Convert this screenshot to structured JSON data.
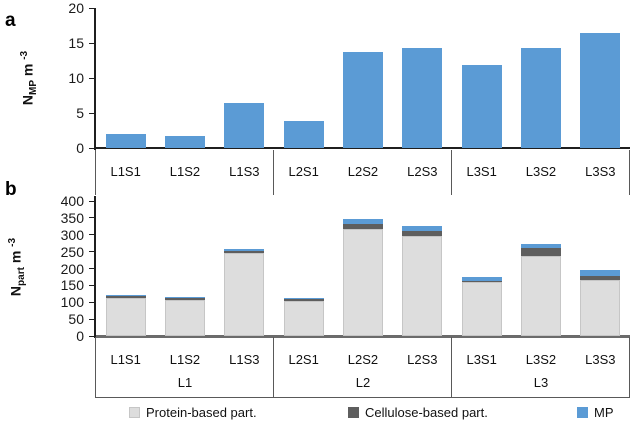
{
  "figure": {
    "panels": [
      {
        "id": "a",
        "letter": "a"
      },
      {
        "id": "b",
        "letter": "b"
      }
    ]
  },
  "colors": {
    "mp_blue": "#5B9BD5",
    "protein_gray": "#DDDDDD",
    "protein_border": "#C6C6C6",
    "cellulose_gray": "#5E5E5E",
    "axis": "#1F1F1F",
    "baseline_gray": "#6B6B6B",
    "divider": "#595959"
  },
  "legend": {
    "items": [
      {
        "label": "Protein-based part.",
        "color": "#DDDDDD",
        "border": "#C6C6C6"
      },
      {
        "label": "Cellulose-based part.",
        "color": "#5E5E5E",
        "border": "#5E5E5E"
      },
      {
        "label": "MP",
        "color": "#5B9BD5",
        "border": "#5B9BD5"
      }
    ]
  },
  "chart_data": [
    {
      "type": "bar",
      "panel": "a",
      "title": "",
      "xlabel": "",
      "ylabel": "N_MP m^-3",
      "ylabel_parts": {
        "base": "N",
        "sub": "MP",
        "rest": " m",
        "sup": "-3"
      },
      "ylim": [
        0,
        20
      ],
      "ytick_step": 5,
      "ytick_labels": [
        "0",
        "5",
        "10",
        "15",
        "20"
      ],
      "grid": false,
      "legend_position": "none",
      "categories": [
        "L1S1",
        "L1S2",
        "L1S3",
        "L2S1",
        "L2S2",
        "L2S3",
        "L3S1",
        "L3S2",
        "L3S3"
      ],
      "values": [
        2.0,
        1.7,
        6.4,
        3.8,
        13.7,
        14.3,
        11.8,
        14.3,
        16.4
      ],
      "bar_color": "#5B9BD5"
    },
    {
      "type": "bar",
      "panel": "b",
      "stacked": true,
      "title": "",
      "xlabel": "",
      "ylabel": "N_part m^-3",
      "ylabel_parts": {
        "base": "N",
        "sub": "part",
        "rest": " m",
        "sup": "-3"
      },
      "ylim": [
        0,
        400
      ],
      "ytick_step": 50,
      "ytick_labels": [
        "0",
        "50",
        "100",
        "150",
        "200",
        "250",
        "300",
        "350",
        "400"
      ],
      "grid": false,
      "legend_position": "bottom",
      "categories": [
        "L1S1",
        "L1S2",
        "L1S3",
        "L2S1",
        "L2S2",
        "L2S3",
        "L3S1",
        "L3S2",
        "L3S3"
      ],
      "group_labels": [
        "L1",
        "L2",
        "L3"
      ],
      "series": [
        {
          "name": "Protein-based part.",
          "color": "#DDDDDD",
          "values": [
            113,
            107,
            245,
            104,
            316,
            295,
            159,
            238,
            166
          ]
        },
        {
          "name": "Cellulose-based part.",
          "color": "#5E5E5E",
          "values": [
            2,
            4,
            7,
            3,
            17,
            15,
            2,
            22,
            13
          ]
        },
        {
          "name": "MP",
          "color": "#5B9BD5",
          "values": [
            2,
            2,
            6,
            4,
            14,
            15,
            12,
            14,
            16
          ]
        }
      ]
    }
  ]
}
